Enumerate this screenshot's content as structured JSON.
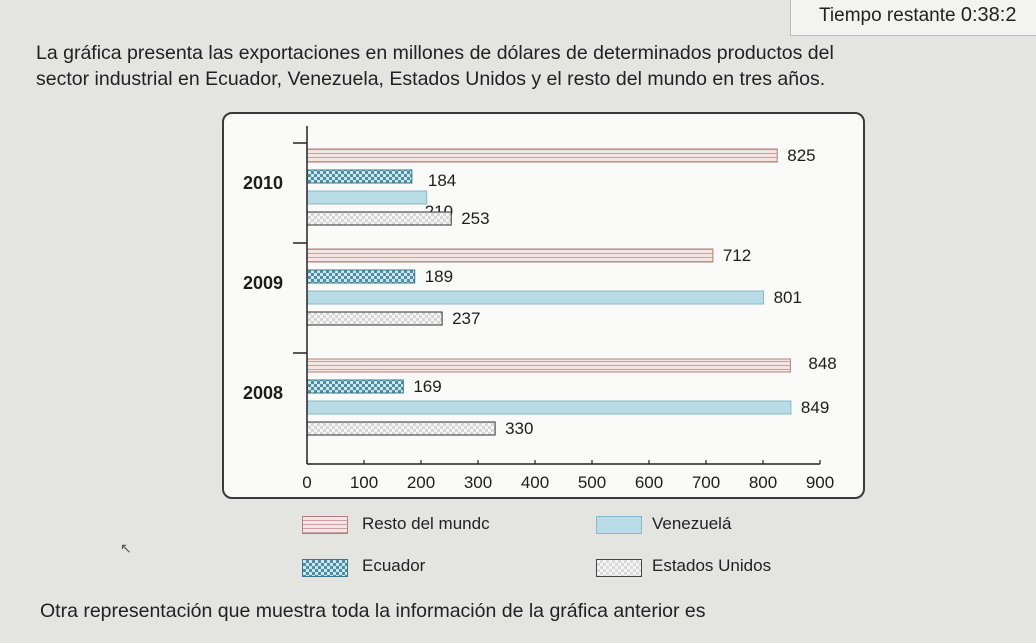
{
  "timer": {
    "label": "Tiempo restante",
    "value": "0:38:2"
  },
  "question": {
    "line1": "La gráfica presenta las exportaciones en millones de dólares de determinados productos del",
    "line2": "sector industrial en Ecuador, Venezuela, Estados Unidos y el resto del mundo en tres años.",
    "prompt": "Otra representación que muestra toda la información de la gráfica anterior es"
  },
  "colors": {
    "rest": "#f4e4e4",
    "rest_line": "#c9a3a3",
    "venezuela": "#b8dbe6",
    "ecuador": "#4b8fa3",
    "usa": "#e6e6e6"
  },
  "chart_data": {
    "type": "bar",
    "orientation": "horizontal",
    "title": "",
    "xlabel": "",
    "ylabel": "",
    "xlim": [
      0,
      900
    ],
    "xticks": [
      0,
      100,
      200,
      300,
      400,
      500,
      600,
      700,
      800,
      900
    ],
    "categories": [
      "2010",
      "2009",
      "2008"
    ],
    "series": [
      {
        "name": "Resto del mundo",
        "values": [
          825,
          712,
          848
        ]
      },
      {
        "name": "Ecuador",
        "values": [
          184,
          189,
          169
        ]
      },
      {
        "name": "Venezuela",
        "values": [
          210,
          801,
          849
        ]
      },
      {
        "name": "Estados Unidos",
        "values": [
          253,
          237,
          330
        ]
      }
    ],
    "legend": [
      "Resto del mundo",
      "Venezuela",
      "Ecuador",
      "Estados Unidos"
    ],
    "legend_position": "bottom"
  },
  "legend_display": {
    "rest": "Resto del mundc",
    "venezuela": "Venezuelá",
    "ecuador": "Ecuador",
    "usa": "Estados Unidos"
  }
}
